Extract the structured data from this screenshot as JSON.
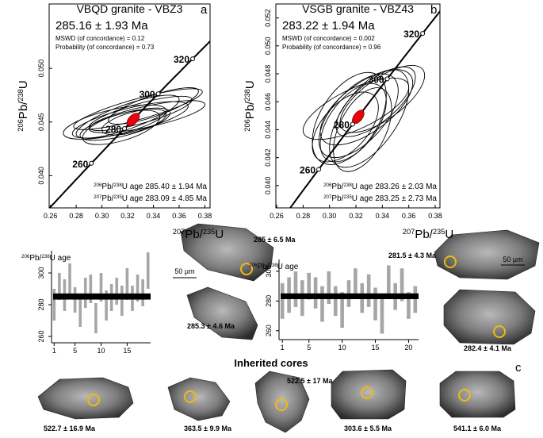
{
  "chart_data": [
    {
      "type": "concordia",
      "title": "VBQD granite - VBZ3",
      "panel": "a",
      "age_label": "285.16 ± 1.93 Ma",
      "concordia_age": 285.16,
      "concordia_error": 1.93,
      "mswd_label": "MSWD (of concordance) = 0.12",
      "probability_label": "Probability (of concordance) = 0.73",
      "annotations": [
        [
          "206",
          "Pb/",
          "238",
          "U age 285.40 ± 1.94 Ma"
        ],
        [
          "207",
          "Pb/",
          "235",
          "U age 283.09 ± 4.85 Ma"
        ]
      ],
      "ylabel": [
        "206",
        "Pb/",
        "238",
        "U"
      ],
      "xlabel": [
        "207",
        "Pb/",
        "235",
        "U"
      ],
      "xlim": [
        0.259,
        0.384
      ],
      "xticks": [
        {
          "value": 0.26,
          "label": "0.26"
        },
        {
          "value": 0.28,
          "label": "0.28"
        },
        {
          "value": 0.3,
          "label": "0.30"
        },
        {
          "value": 0.32,
          "label": "0.32"
        },
        {
          "value": 0.34,
          "label": "0.34"
        },
        {
          "value": 0.36,
          "label": "0.36"
        },
        {
          "value": 0.38,
          "label": "0.38"
        }
      ],
      "ylim": [
        0.037,
        0.056
      ],
      "yticks": [
        {
          "value": 0.04,
          "label": "0.040"
        },
        {
          "value": 0.045,
          "label": "0.045"
        },
        {
          "value": 0.05,
          "label": "0.050"
        }
      ],
      "ages": [
        260,
        280,
        300,
        320
      ],
      "ellipse_color": "#000000",
      "age_color": "#e8000b",
      "ellipses": [
        {
          "cx": 0.322,
          "cy": 0.0452,
          "sx": 0.045,
          "sy": 0.0017,
          "rho": 0.75
        },
        {
          "cx": 0.33,
          "cy": 0.0458,
          "sx": 0.04,
          "sy": 0.0016,
          "rho": 0.8
        },
        {
          "cx": 0.318,
          "cy": 0.0448,
          "sx": 0.035,
          "sy": 0.0015,
          "rho": 0.7
        },
        {
          "cx": 0.328,
          "cy": 0.0462,
          "sx": 0.05,
          "sy": 0.0019,
          "rho": 0.85
        },
        {
          "cx": 0.315,
          "cy": 0.0445,
          "sx": 0.03,
          "sy": 0.0016,
          "rho": 0.6
        },
        {
          "cx": 0.335,
          "cy": 0.0455,
          "sx": 0.045,
          "sy": 0.0015,
          "rho": 0.75
        },
        {
          "cx": 0.325,
          "cy": 0.045,
          "sx": 0.025,
          "sy": 0.0012,
          "rho": 0.6
        },
        {
          "cx": 0.32,
          "cy": 0.0455,
          "sx": 0.04,
          "sy": 0.002,
          "rho": 0.8
        },
        {
          "cx": 0.34,
          "cy": 0.0465,
          "sx": 0.035,
          "sy": 0.0017,
          "rho": 0.8
        },
        {
          "cx": 0.31,
          "cy": 0.045,
          "sx": 0.04,
          "sy": 0.0016,
          "rho": 0.65
        }
      ]
    },
    {
      "type": "concordia",
      "title": "VSGB granite - VBZ43",
      "panel": "b",
      "age_label": "283.22 ± 1.94 Ma",
      "concordia_age": 283.22,
      "concordia_error": 1.94,
      "mswd_label": "MSWD (of concordance) = 0.002",
      "probability_label": "Probability (of concordance) = 0.96",
      "annotations": [
        [
          "206",
          "Pb/",
          "238",
          "U age 283.26 ± 2.03 Ma"
        ],
        [
          "207",
          "Pb/",
          "235",
          "U age 283.25 ± 2.73 Ma"
        ]
      ],
      "ylabel": [
        "206",
        "Pb/",
        "238",
        "U"
      ],
      "xlabel": [
        "207",
        "Pb/",
        "235",
        "U"
      ],
      "xlim": [
        0.2594,
        0.3836
      ],
      "xticks": [
        {
          "value": 0.26,
          "label": "0.26"
        },
        {
          "value": 0.28,
          "label": "0.28"
        },
        {
          "value": 0.3,
          "label": "0.30"
        },
        {
          "value": 0.32,
          "label": "0.32"
        },
        {
          "value": 0.34,
          "label": "0.34"
        },
        {
          "value": 0.36,
          "label": "0.36"
        },
        {
          "value": 0.38,
          "label": "0.38"
        }
      ],
      "ylim": [
        0.0384,
        0.053
      ],
      "yticks": [
        {
          "value": 0.04,
          "label": "0.040"
        },
        {
          "value": 0.042,
          "label": "0.042"
        },
        {
          "value": 0.044,
          "label": "0.044"
        },
        {
          "value": 0.046,
          "label": "0.046"
        },
        {
          "value": 0.048,
          "label": "0.048"
        },
        {
          "value": 0.05,
          "label": "0.050"
        },
        {
          "value": 0.052,
          "label": "0.052"
        }
      ],
      "ages": [
        260,
        280,
        300,
        320
      ],
      "ellipse_color": "#000000",
      "age_color": "#e8000b",
      "ellipses": [
        {
          "cx": 0.322,
          "cy": 0.045,
          "sx": 0.03,
          "sy": 0.003,
          "rho": 0.6
        },
        {
          "cx": 0.318,
          "cy": 0.0445,
          "sx": 0.025,
          "sy": 0.0028,
          "rho": 0.55
        },
        {
          "cx": 0.328,
          "cy": 0.0456,
          "sx": 0.035,
          "sy": 0.0027,
          "rho": 0.65
        },
        {
          "cx": 0.315,
          "cy": 0.0448,
          "sx": 0.028,
          "sy": 0.0033,
          "rho": 0.5
        },
        {
          "cx": 0.325,
          "cy": 0.044,
          "sx": 0.022,
          "sy": 0.003,
          "rho": 0.5
        },
        {
          "cx": 0.335,
          "cy": 0.046,
          "sx": 0.03,
          "sy": 0.0025,
          "rho": 0.7
        },
        {
          "cx": 0.32,
          "cy": 0.0455,
          "sx": 0.04,
          "sy": 0.0022,
          "rho": 0.7
        },
        {
          "cx": 0.312,
          "cy": 0.0442,
          "sx": 0.025,
          "sy": 0.0025,
          "rho": 0.55
        },
        {
          "cx": 0.33,
          "cy": 0.0448,
          "sx": 0.03,
          "sy": 0.0035,
          "rho": 0.6
        },
        {
          "cx": 0.34,
          "cy": 0.0462,
          "sx": 0.032,
          "sy": 0.0024,
          "rho": 0.7
        }
      ]
    },
    {
      "type": "rangebar",
      "ylabel": [
        "206",
        "Pb/",
        "238",
        "U age"
      ],
      "color": "#a6a6a6",
      "x": [
        1,
        2,
        3,
        4,
        5,
        6,
        7,
        8,
        9,
        10,
        11,
        12,
        13,
        14,
        15,
        16,
        17,
        18,
        19
      ],
      "low": [
        270,
        283,
        276,
        286,
        275,
        266,
        278,
        281,
        262,
        282,
        270,
        276,
        280,
        273,
        283,
        276,
        282,
        279,
        290
      ],
      "high": [
        290,
        300,
        296,
        306,
        291,
        284,
        297,
        299,
        281,
        300,
        289,
        293,
        297,
        292,
        303,
        292,
        299,
        296,
        313
      ],
      "xlim": [
        0.5,
        19.5
      ],
      "xticks": [
        1,
        5,
        10,
        15
      ],
      "ylim": [
        256,
        314
      ],
      "yticks": [
        260,
        280,
        300
      ]
    },
    {
      "type": "rangebar",
      "ylabel": [
        "206",
        "Pb/",
        "238",
        "U age"
      ],
      "color": "#a6a6a6",
      "x": [
        1,
        2,
        3,
        4,
        5,
        6,
        7,
        8,
        9,
        10,
        11,
        12,
        13,
        14,
        15,
        16,
        17,
        18,
        19,
        20,
        21
      ],
      "low": [
        268,
        272,
        276,
        270,
        281,
        275,
        266,
        278,
        270,
        262,
        276,
        282,
        272,
        276,
        267,
        258,
        284,
        274,
        280,
        268,
        272
      ],
      "high": [
        292,
        296,
        300,
        294,
        299,
        296,
        290,
        300,
        290,
        286,
        294,
        302,
        292,
        298,
        289,
        283,
        304,
        292,
        302,
        286,
        290
      ],
      "xlim": [
        0.5,
        21.5
      ],
      "xticks": [
        1,
        5,
        10,
        15,
        20
      ],
      "ylim": [
        254,
        308
      ],
      "yticks": [
        260,
        280,
        300
      ]
    }
  ],
  "zircons_a": [
    "285 ± 6.5 Ma",
    "285.3 ± 4.6 Ma"
  ],
  "zircons_b": [
    "281.5 ± 4.3 Ma",
    "282.4 ± 4.1 Ma"
  ],
  "scale_bars": [
    "50 µm",
    "50 µm"
  ],
  "inherited": {
    "title": "Inherited cores",
    "panel": "c",
    "labels": [
      "522.7 ± 16.9 Ma",
      "363.5 ± 9.9 Ma",
      "522.5 ± 17 Ma",
      "303.6 ± 5.5 Ma",
      "541.1 ± 6.0 Ma"
    ]
  }
}
